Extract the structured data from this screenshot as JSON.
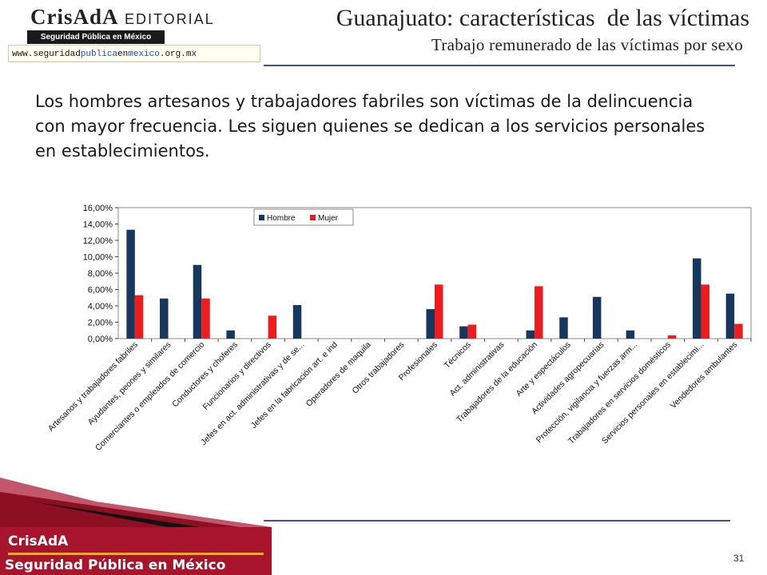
{
  "logo": {
    "name": "CrisAdA",
    "editorial": "EDITORIAL",
    "tagline": "Seguridad Pública en México",
    "url_pre": "www.seguridad",
    "url_hl1": "publica",
    "url_mid": "en",
    "url_hl2": "mexico",
    "url_post": ".org.mx"
  },
  "header": {
    "title": "Guanajuato: características  de las víctimas",
    "subtitle": "Trabajo remunerado de las víctimas por sexo"
  },
  "body_text": "Los hombres artesanos y trabajadores fabriles son víctimas de la delincuencia con mayor frecuencia. Les siguen quienes se dedican a los servicios personales en establecimientos.",
  "footer": {
    "brand": "CrisAdA",
    "tagline": "Seguridad Pública en México",
    "page": "31"
  },
  "colors": {
    "hombre": "#17375e",
    "mujer": "#ee1c1c",
    "accent_rule": "#3a4fb0",
    "footer_band": "#a8142c"
  },
  "chart_data": {
    "type": "bar",
    "ylim": [
      0,
      16
    ],
    "yticks": [
      "0,00%",
      "2,00%",
      "4,00%",
      "6,00%",
      "8,00%",
      "10,00%",
      "12,00%",
      "14,00%",
      "16,00%"
    ],
    "grid": false,
    "legend_position": "top-left",
    "categories": [
      "Artesanos y trabajadores fabriles",
      "Ayudantes, peones y similares",
      "Comerciantes o empleados de comercio",
      "Conductores y choferes",
      "Funcionarios y directivos",
      "Jefes en act. administrativas y de se...",
      "Jefes en la fabricación art. e ind",
      "Operadores de maquila",
      "Otros trabajadores",
      "Profesionales",
      "Técnicos",
      "Act. administrativas",
      "Trabajadores de la educación",
      "Arte y espectáculos",
      "Actividades agropecuarias",
      "Protección, vigilancia y fuerzas arm...",
      "Trabajadores en servicios domésticos",
      "Servicios personales en establecimi...",
      "Vendedores ambulantes"
    ],
    "series": [
      {
        "name": "Hombre",
        "values": [
          13.3,
          4.9,
          9.0,
          1.0,
          0,
          4.1,
          0,
          0,
          0,
          3.6,
          1.5,
          0,
          1.0,
          2.6,
          5.1,
          1.0,
          0,
          9.8,
          5.5
        ]
      },
      {
        "name": "Mujer",
        "values": [
          5.3,
          0,
          4.9,
          0,
          2.8,
          0,
          0,
          0,
          0,
          6.6,
          1.7,
          0,
          6.4,
          0,
          0,
          0,
          0.4,
          6.6,
          1.8
        ]
      }
    ]
  }
}
